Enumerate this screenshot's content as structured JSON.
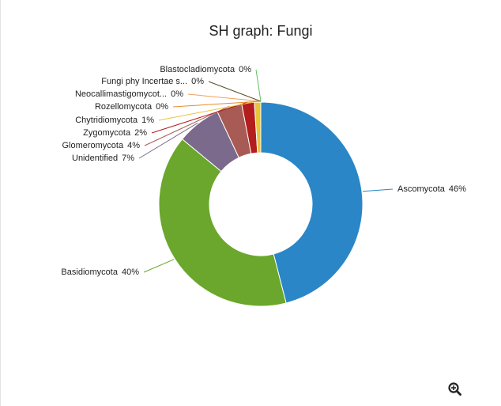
{
  "chart_data": {
    "type": "donut",
    "title": "SH graph: Fungi",
    "categories": [
      "Ascomycota",
      "Basidiomycota",
      "Unidentified",
      "Glomeromycota",
      "Zygomycota",
      "Chytridiomycota",
      "Rozellomycota",
      "Neocallimastigomycot...",
      "Fungi phy Incertae s...",
      "Blastocladiomycota"
    ],
    "values": [
      46,
      40,
      7,
      4,
      2,
      1,
      0,
      0,
      0,
      0
    ],
    "value_labels": [
      "46%",
      "40%",
      "7%",
      "4%",
      "2%",
      "1%",
      "0%",
      "0%",
      "0%",
      "0%"
    ],
    "colors": [
      "#2a86c6",
      "#6aa72c",
      "#7b6a8c",
      "#a85a55",
      "#b31d1d",
      "#e8c53a",
      "#e88b2e",
      "#f0a060",
      "#5a4a2a",
      "#5cc35c"
    ]
  }
}
